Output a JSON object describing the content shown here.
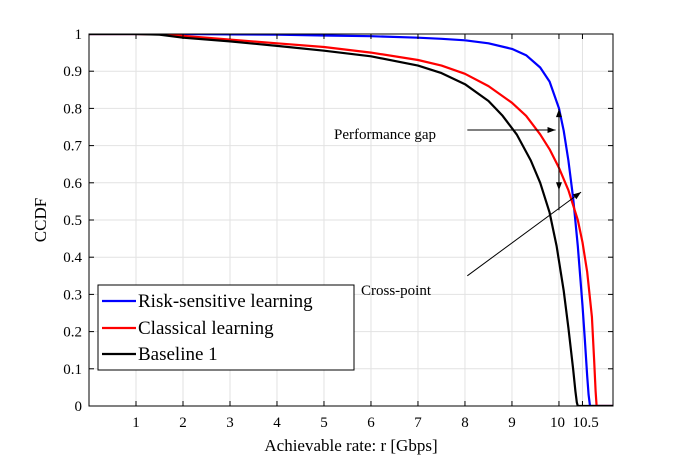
{
  "chart_data": {
    "type": "line",
    "xlabel": "Achievable rate: r [Gbps]",
    "ylabel": "CCDF",
    "xlim": [
      0,
      11.15
    ],
    "ylim": [
      0,
      1
    ],
    "grid": true,
    "legend_position": "bottom-left",
    "x_ticks": [
      {
        "value": 1,
        "label": "1"
      },
      {
        "value": 2,
        "label": "2"
      },
      {
        "value": 3,
        "label": "3"
      },
      {
        "value": 4,
        "label": "4"
      },
      {
        "value": 5,
        "label": "5"
      },
      {
        "value": 6,
        "label": "6"
      },
      {
        "value": 7,
        "label": "7"
      },
      {
        "value": 8,
        "label": "8"
      },
      {
        "value": 9,
        "label": "9"
      },
      {
        "value": 10,
        "label": "10"
      },
      {
        "value": 10.5,
        "label": "10.5"
      }
    ],
    "y_ticks": [
      {
        "value": 0,
        "label": "0"
      },
      {
        "value": 0.1,
        "label": "0.1"
      },
      {
        "value": 0.2,
        "label": "0.2"
      },
      {
        "value": 0.3,
        "label": "0.3"
      },
      {
        "value": 0.4,
        "label": "0.4"
      },
      {
        "value": 0.5,
        "label": "0.5"
      },
      {
        "value": 0.6,
        "label": "0.6"
      },
      {
        "value": 0.7,
        "label": "0.7"
      },
      {
        "value": 0.8,
        "label": "0.8"
      },
      {
        "value": 0.9,
        "label": "0.9"
      },
      {
        "value": 1,
        "label": "1"
      }
    ],
    "series": [
      {
        "name": "Risk-sensitive learning",
        "color": "#0000ff",
        "x": [
          0,
          1,
          2,
          3,
          4,
          5,
          6,
          7,
          7.5,
          8,
          8.5,
          9,
          9.3,
          9.6,
          9.8,
          10,
          10.1,
          10.2,
          10.3,
          10.4,
          10.5,
          10.55,
          10.6,
          10.63,
          10.66,
          11.15
        ],
        "y": [
          1,
          1,
          1,
          0.999,
          0.998,
          0.996,
          0.994,
          0.99,
          0.987,
          0.983,
          0.975,
          0.96,
          0.943,
          0.91,
          0.872,
          0.8,
          0.74,
          0.66,
          0.56,
          0.43,
          0.27,
          0.18,
          0.08,
          0.03,
          0,
          0
        ]
      },
      {
        "name": "Classical learning",
        "color": "#ff0000",
        "x": [
          0,
          1,
          1.5,
          2,
          3,
          4,
          5,
          6,
          7,
          7.5,
          8,
          8.5,
          9,
          9.3,
          9.6,
          9.8,
          10,
          10.2,
          10.4,
          10.5,
          10.6,
          10.7,
          10.75,
          10.78,
          10.8,
          11.15
        ],
        "y": [
          1,
          1,
          0.999,
          0.995,
          0.985,
          0.975,
          0.965,
          0.95,
          0.93,
          0.915,
          0.893,
          0.86,
          0.815,
          0.78,
          0.73,
          0.69,
          0.64,
          0.58,
          0.5,
          0.44,
          0.36,
          0.24,
          0.12,
          0.04,
          0,
          0
        ]
      },
      {
        "name": "Baseline 1",
        "color": "#000000",
        "x": [
          0,
          1,
          1.5,
          2,
          3,
          4,
          5,
          6,
          7,
          7.5,
          8,
          8.5,
          8.8,
          9.1,
          9.4,
          9.6,
          9.8,
          9.95,
          10.1,
          10.2,
          10.3,
          10.35,
          10.38,
          10.4,
          11.15
        ],
        "y": [
          1,
          1,
          0.998,
          0.99,
          0.98,
          0.968,
          0.955,
          0.94,
          0.915,
          0.895,
          0.865,
          0.82,
          0.78,
          0.73,
          0.66,
          0.6,
          0.52,
          0.43,
          0.31,
          0.21,
          0.1,
          0.04,
          0.01,
          0,
          0
        ]
      }
    ],
    "annotations": [
      {
        "text": "Performance gap",
        "from": [
          8.05,
          0.742
        ],
        "to": [
          9.97,
          0.742
        ]
      },
      {
        "text": "Cross-point",
        "from": [
          8.05,
          0.35
        ],
        "to": [
          10.47,
          0.575
        ]
      }
    ]
  }
}
